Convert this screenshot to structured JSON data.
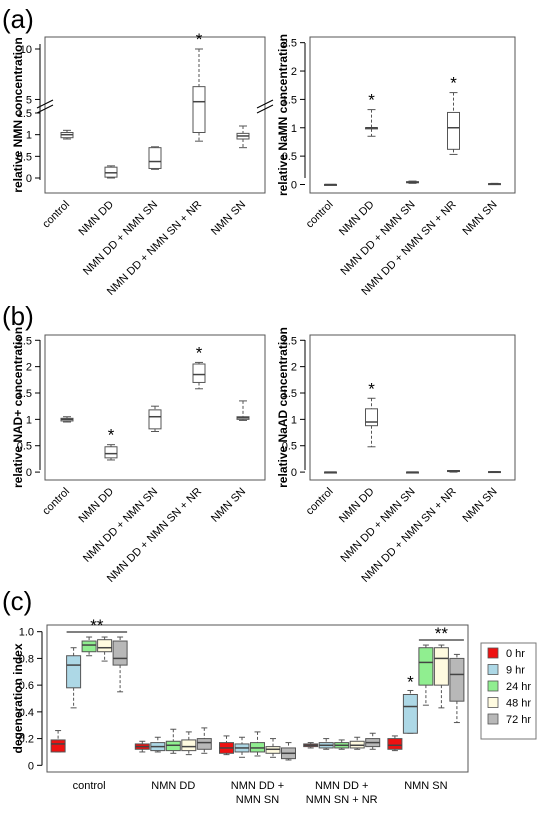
{
  "panel_labels": {
    "a": "(a)",
    "b": "(b)",
    "c": "(c)"
  },
  "chart_data": [
    {
      "id": "nmn",
      "type": "boxplot",
      "ylabel": "relative NMN concentration",
      "axis_break": true,
      "yticks_lower": [
        "0",
        "0.5",
        "1",
        "1.5"
      ],
      "yticks_upper": [
        "5",
        "10"
      ],
      "categories": [
        "control",
        "NMN DD",
        "NMN DD + NMN SN",
        "NMN DD + NMN SN + NR",
        "NMN SN"
      ],
      "boxes": [
        {
          "min": 0.9,
          "q1": 0.93,
          "median": 1.0,
          "q3": 1.05,
          "max": 1.1
        },
        {
          "min": 0.0,
          "q1": 0.02,
          "median": 0.12,
          "q3": 0.25,
          "max": 0.28
        },
        {
          "min": 0.2,
          "q1": 0.22,
          "median": 0.38,
          "q3": 0.7,
          "max": 0.72
        },
        {
          "min": 0.85,
          "q1": 1.05,
          "median": 3.0,
          "q3": 5.0,
          "max": 10.0
        },
        {
          "min": 0.7,
          "q1": 0.9,
          "median": 0.97,
          "q3": 1.03,
          "max": 1.2
        }
      ],
      "significant": [
        false,
        false,
        false,
        true,
        false
      ],
      "star": "*"
    },
    {
      "id": "namn",
      "type": "boxplot",
      "ylabel": "relative NaMN concentration",
      "yticks": [
        "0",
        "0.5",
        "1",
        "1.5",
        "2",
        "2.5"
      ],
      "ylim": [
        -0.15,
        2.6
      ],
      "categories": [
        "control",
        "NMN DD",
        "NMN DD + NMN SN",
        "NMN DD + NMN SN + NR",
        "NMN SN"
      ],
      "boxes": [
        {
          "min": 0.0,
          "q1": 0.0,
          "median": 0.0,
          "q3": 0.0,
          "max": 0.0
        },
        {
          "min": 0.85,
          "q1": 0.98,
          "median": 1.0,
          "q3": 1.0,
          "max": 1.32
        },
        {
          "min": 0.02,
          "q1": 0.03,
          "median": 0.04,
          "q3": 0.05,
          "max": 0.06
        },
        {
          "min": 0.53,
          "q1": 0.62,
          "median": 1.0,
          "q3": 1.27,
          "max": 1.62
        },
        {
          "min": 0.0,
          "q1": 0.005,
          "median": 0.01,
          "q3": 0.015,
          "max": 0.02
        }
      ],
      "significant": [
        false,
        true,
        false,
        true,
        false
      ],
      "star": "*"
    },
    {
      "id": "nad",
      "type": "boxplot",
      "ylabel": "relative NAD+ concentration",
      "yticks": [
        "0",
        "0.5",
        "1",
        "1.5",
        "2",
        "2.5"
      ],
      "ylim": [
        -0.15,
        2.6
      ],
      "categories": [
        "control",
        "NMN DD",
        "NMN DD + NMN SN",
        "NMN DD + NMN SN + NR",
        "NMN SN"
      ],
      "boxes": [
        {
          "min": 0.95,
          "q1": 0.97,
          "median": 1.0,
          "q3": 1.02,
          "max": 1.05
        },
        {
          "min": 0.23,
          "q1": 0.27,
          "median": 0.35,
          "q3": 0.48,
          "max": 0.52
        },
        {
          "min": 0.77,
          "q1": 0.82,
          "median": 1.05,
          "q3": 1.18,
          "max": 1.25
        },
        {
          "min": 1.58,
          "q1": 1.7,
          "median": 1.85,
          "q3": 2.05,
          "max": 2.08
        },
        {
          "min": 0.98,
          "q1": 1.0,
          "median": 1.03,
          "q3": 1.05,
          "max": 1.35
        }
      ],
      "significant": [
        false,
        true,
        false,
        true,
        false
      ],
      "star": "*"
    },
    {
      "id": "naad",
      "type": "boxplot",
      "ylabel": "relative NaAD concentration",
      "yticks": [
        "0",
        "0.5",
        "1",
        "1.5",
        "2",
        "2.5"
      ],
      "ylim": [
        -0.15,
        2.6
      ],
      "categories": [
        "control",
        "NMN DD",
        "NMN DD + NMN SN",
        "NMN DD + NMN SN + NR",
        "NMN SN"
      ],
      "boxes": [
        {
          "min": 0.0,
          "q1": 0.0,
          "median": 0.0,
          "q3": 0.0,
          "max": 0.0
        },
        {
          "min": 0.48,
          "q1": 0.88,
          "median": 0.95,
          "q3": 1.2,
          "max": 1.4
        },
        {
          "min": 0.0,
          "q1": 0.0,
          "median": 0.0,
          "q3": 0.0,
          "max": 0.0
        },
        {
          "min": 0.0,
          "q1": 0.01,
          "median": 0.02,
          "q3": 0.03,
          "max": 0.03
        },
        {
          "min": 0.0,
          "q1": 0.0,
          "median": 0.0,
          "q3": 0.01,
          "max": 0.01
        }
      ],
      "significant": [
        false,
        true,
        false,
        false,
        false
      ],
      "star": "*"
    },
    {
      "id": "degeneration",
      "type": "grouped-boxplot",
      "ylabel": "degeneration index",
      "yticks": [
        "0",
        "0.2",
        "0.4",
        "0.6",
        "0.8",
        "1.0"
      ],
      "ylim": [
        -0.05,
        1.05
      ],
      "groups": [
        "control",
        "NMN DD",
        "NMN DD + NMN SN",
        "NMN DD + NMN SN + NR",
        "NMN SN"
      ],
      "group_label_lines": [
        [
          "control"
        ],
        [
          "NMN DD"
        ],
        [
          "NMN DD +",
          "NMN SN"
        ],
        [
          "NMN DD +",
          "NMN SN + NR"
        ],
        [
          "NMN SN"
        ]
      ],
      "legend_position": "right",
      "series": [
        {
          "name": "0 hr",
          "color": "#ee1111"
        },
        {
          "name": "9 hr",
          "color": "#add8e6"
        },
        {
          "name": "24 hr",
          "color": "#90ee90"
        },
        {
          "name": "48 hr",
          "color": "#fffbe0"
        },
        {
          "name": "72 hr",
          "color": "#b8b8b8"
        }
      ],
      "boxes": [
        [
          {
            "min": 0.1,
            "q1": 0.1,
            "median": 0.16,
            "q3": 0.19,
            "max": 0.26
          },
          {
            "min": 0.43,
            "q1": 0.58,
            "median": 0.75,
            "q3": 0.82,
            "max": 0.88
          },
          {
            "min": 0.82,
            "q1": 0.85,
            "median": 0.9,
            "q3": 0.93,
            "max": 0.96
          },
          {
            "min": 0.78,
            "q1": 0.85,
            "median": 0.88,
            "q3": 0.94,
            "max": 0.96
          },
          {
            "min": 0.55,
            "q1": 0.75,
            "median": 0.8,
            "q3": 0.93,
            "max": 0.96
          }
        ],
        [
          {
            "min": 0.1,
            "q1": 0.12,
            "median": 0.14,
            "q3": 0.16,
            "max": 0.18
          },
          {
            "min": 0.1,
            "q1": 0.11,
            "median": 0.14,
            "q3": 0.17,
            "max": 0.21
          },
          {
            "min": 0.09,
            "q1": 0.11,
            "median": 0.15,
            "q3": 0.18,
            "max": 0.27
          },
          {
            "min": 0.08,
            "q1": 0.11,
            "median": 0.14,
            "q3": 0.19,
            "max": 0.25
          },
          {
            "min": 0.09,
            "q1": 0.12,
            "median": 0.17,
            "q3": 0.2,
            "max": 0.28
          }
        ],
        [
          {
            "min": 0.08,
            "q1": 0.09,
            "median": 0.13,
            "q3": 0.17,
            "max": 0.22
          },
          {
            "min": 0.06,
            "q1": 0.1,
            "median": 0.13,
            "q3": 0.16,
            "max": 0.21
          },
          {
            "min": 0.07,
            "q1": 0.1,
            "median": 0.13,
            "q3": 0.17,
            "max": 0.25
          },
          {
            "min": 0.06,
            "q1": 0.09,
            "median": 0.12,
            "q3": 0.14,
            "max": 0.2
          },
          {
            "min": 0.04,
            "q1": 0.05,
            "median": 0.09,
            "q3": 0.13,
            "max": 0.17
          }
        ],
        [
          {
            "min": 0.13,
            "q1": 0.14,
            "median": 0.15,
            "q3": 0.16,
            "max": 0.17
          },
          {
            "min": 0.12,
            "q1": 0.13,
            "median": 0.15,
            "q3": 0.17,
            "max": 0.2
          },
          {
            "min": 0.12,
            "q1": 0.13,
            "median": 0.15,
            "q3": 0.17,
            "max": 0.19
          },
          {
            "min": 0.12,
            "q1": 0.13,
            "median": 0.15,
            "q3": 0.18,
            "max": 0.21
          },
          {
            "min": 0.12,
            "q1": 0.14,
            "median": 0.17,
            "q3": 0.2,
            "max": 0.24
          }
        ],
        [
          {
            "min": 0.11,
            "q1": 0.12,
            "median": 0.15,
            "q3": 0.2,
            "max": 0.22
          },
          {
            "min": 0.24,
            "q1": 0.24,
            "median": 0.44,
            "q3": 0.53,
            "max": 0.56
          },
          {
            "min": 0.45,
            "q1": 0.6,
            "median": 0.77,
            "q3": 0.88,
            "max": 0.9
          },
          {
            "min": 0.43,
            "q1": 0.6,
            "median": 0.8,
            "q3": 0.88,
            "max": 0.9
          },
          {
            "min": 0.32,
            "q1": 0.48,
            "median": 0.68,
            "q3": 0.8,
            "max": 0.83
          }
        ]
      ],
      "annotations": [
        {
          "text": "**",
          "group": 0,
          "series_from": 1,
          "series_to": 4
        },
        {
          "text": "*",
          "group": 4,
          "series": 1
        },
        {
          "text": "**",
          "group": 4,
          "series_from": 2,
          "series_to": 4
        }
      ]
    }
  ]
}
